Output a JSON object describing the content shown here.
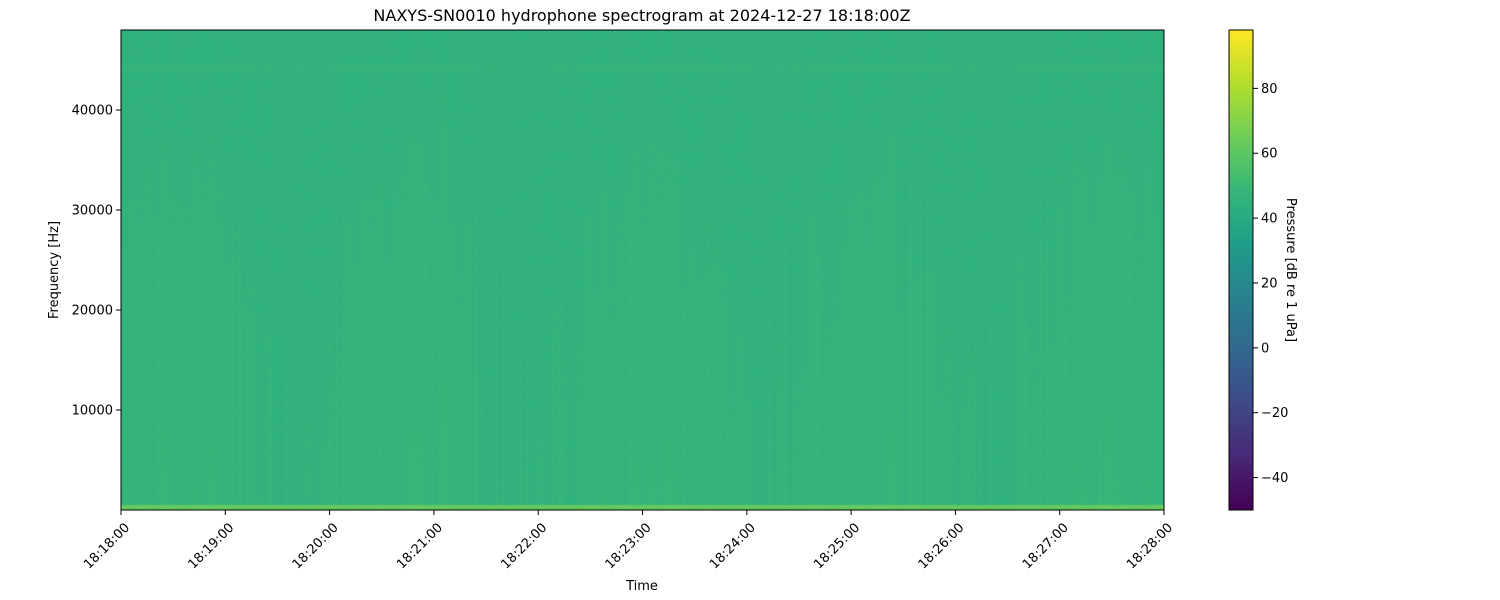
{
  "chart_data": {
    "type": "heatmap",
    "title": "NAXYS-SN0010 hydrophone spectrogram at 2024-12-27 18:18:00Z",
    "xlabel": "Time",
    "ylabel": "Frequency [Hz]",
    "colorbar_label": "Pressure [dB re 1 uPa]",
    "colormap": "viridis",
    "x_ticks": [
      "18:18:00",
      "18:19:00",
      "18:20:00",
      "18:21:00",
      "18:22:00",
      "18:23:00",
      "18:24:00",
      "18:25:00",
      "18:26:00",
      "18:27:00",
      "18:28:00"
    ],
    "xlim": [
      "18:18:00",
      "18:28:00"
    ],
    "y_ticks": [
      10000,
      20000,
      30000,
      40000
    ],
    "ylim": [
      0,
      48000
    ],
    "colorbar_ticks": [
      -40,
      -20,
      0,
      20,
      40,
      60,
      80
    ],
    "clim": [
      -50,
      98
    ],
    "typical_level_db": 45,
    "low_frequency_band_level_db": 62,
    "grid": false
  }
}
